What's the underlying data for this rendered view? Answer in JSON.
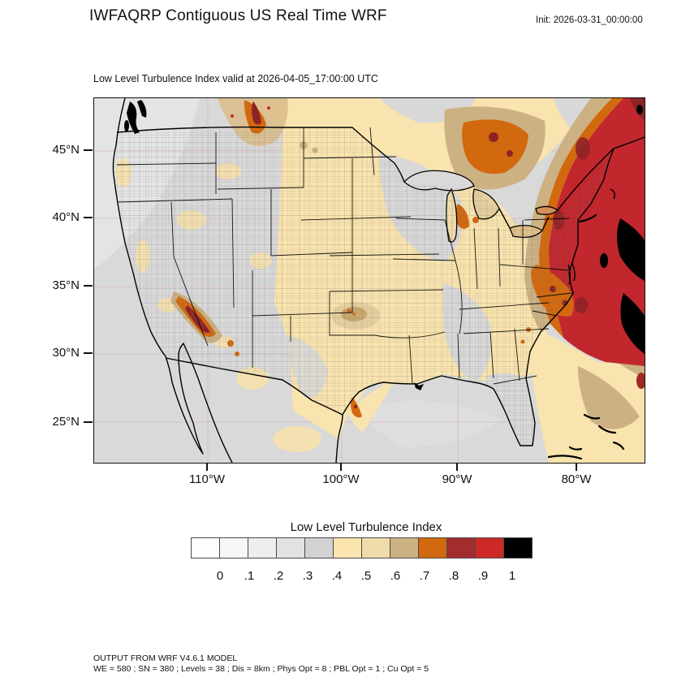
{
  "header": {
    "title": "IWFAQRP Contiguous US Real Time WRF",
    "init_label": "Init: 2026-03-31_00:00:00"
  },
  "map": {
    "subtitle": "Low Level Turbulence Index valid at 2026-04-05_17:00:00 UTC",
    "lat_labels": [
      "45°N",
      "40°N",
      "35°N",
      "30°N",
      "25°N"
    ],
    "lon_labels": [
      "110°W",
      "100°W",
      "90°W",
      "80°W"
    ]
  },
  "colorbar": {
    "title": "Low Level Turbulence Index",
    "tick_labels": [
      "0",
      ".1",
      ".2",
      ".3",
      ".4",
      ".5",
      ".6",
      ".7",
      ".8",
      ".9",
      "1"
    ],
    "colors": [
      "#fefefe",
      "#f7f7f7",
      "#eeeeee",
      "#e2e2e2",
      "#d2d2d2",
      "#fbe4ad",
      "#f0dcab",
      "#ccb183",
      "#d2690f",
      "#a32d2d",
      "#cd2a27",
      "#000000"
    ]
  },
  "footer": {
    "line1": "OUTPUT FROM WRF V4.6.1 MODEL",
    "line2": "WE = 580 ; SN = 380 ; Levels = 38 ; Dis = 8km ; Phys Opt = 8 ; PBL Opt = 1 ; Cu Opt = 5"
  }
}
